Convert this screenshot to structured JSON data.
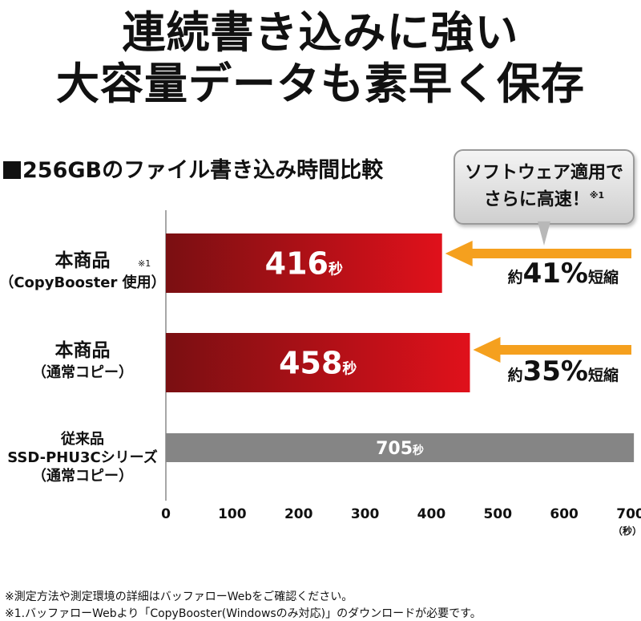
{
  "headline": {
    "line1": "連続書き込みに強い",
    "line2": "大容量データも素早く保存"
  },
  "subtitle": "256GBのファイル書き込み時間比較",
  "callout": {
    "line1": "ソフトウェア適用で",
    "line2": "さらに高速！",
    "note_mark": "※1"
  },
  "reductions": [
    {
      "prefix": "約",
      "value": "41%",
      "suffix": "短縮"
    },
    {
      "prefix": "約",
      "value": "35%",
      "suffix": "短縮"
    }
  ],
  "footnotes": [
    "※測定方法や測定環境の詳細はバッファローWebをご確認ください。",
    "※1.バッファローWebより「CopyBooster(Windowsのみ対応)」のダウンロードが必要です。"
  ],
  "colors": {
    "bar_dark_red": "#7a0f12",
    "bar_bright_red": "#e0111b",
    "bar_gray": "#858585",
    "arrow_orange": "#f5a01e"
  },
  "chart_data": {
    "type": "bar",
    "orientation": "horizontal",
    "categories": [
      {
        "lines": [
          "本商品",
          "（CopyBooster 使用）"
        ],
        "note": "※1"
      },
      {
        "lines": [
          "本商品",
          "（通常コピー）"
        ]
      },
      {
        "lines": [
          "従来品",
          "SSD-PHU3Cシリーズ",
          "（通常コピー）"
        ]
      }
    ],
    "values": [
      416,
      458,
      705
    ],
    "value_labels": [
      "416",
      "458",
      "705"
    ],
    "value_unit": "秒",
    "xlim": [
      0,
      700
    ],
    "xticks": [
      0,
      100,
      200,
      300,
      400,
      500,
      600,
      700
    ],
    "xunit": "（秒）",
    "grid": false
  }
}
